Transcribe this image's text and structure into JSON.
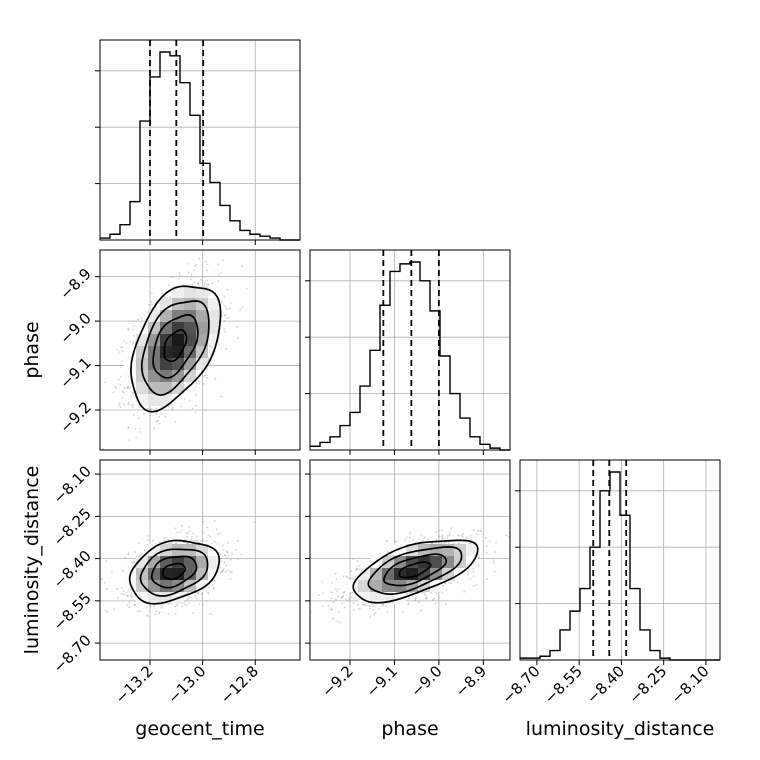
{
  "chart_data": {
    "type": "corner",
    "parameters": [
      "geocent_time",
      "phase",
      "luminosity_distance"
    ],
    "axis_labels": {
      "x": [
        "geocent_time",
        "phase",
        "luminosity_distance"
      ],
      "y": [
        "",
        "phase",
        "luminosity_distance"
      ]
    },
    "ticks": {
      "geocent_time": [
        "−13.2",
        "−13.0",
        "−12.8"
      ],
      "phase": [
        "−9.2",
        "−9.1",
        "−9.0",
        "−8.9"
      ],
      "luminosity_distance": [
        "−8.70",
        "−8.55",
        "−8.40",
        "−8.25",
        "−8.10"
      ]
    },
    "tick_values": {
      "geocent_time": [
        -13.2,
        -13.0,
        -12.8
      ],
      "phase": [
        -9.2,
        -9.1,
        -9.0,
        -8.9
      ],
      "luminosity_distance": [
        -8.7,
        -8.55,
        -8.4,
        -8.25,
        -8.1
      ]
    },
    "ranges": {
      "geocent_time": [
        -13.39,
        -12.63
      ],
      "phase": [
        -9.29,
        -8.84
      ],
      "luminosity_distance": [
        -8.76,
        -8.05
      ]
    },
    "quantiles": {
      "geocent_time": [
        -13.2,
        -13.1,
        -12.998
      ],
      "phase": [
        -9.125,
        -9.062,
        -9.0
      ],
      "luminosity_distance": [
        -8.5,
        -8.443,
        -8.383
      ]
    },
    "histograms": {
      "geocent_time": {
        "bin_edges": [
          -13.39,
          -13.352,
          -13.314,
          -13.276,
          -13.238,
          -13.2,
          -13.162,
          -13.124,
          -13.086,
          -13.048,
          -13.01,
          -12.972,
          -12.934,
          -12.896,
          -12.858,
          -12.82,
          -12.782,
          -12.744,
          -12.706,
          -12.668,
          -12.63
        ],
        "counts": [
          1,
          3,
          8,
          20,
          62,
          85,
          98,
          96,
          82,
          65,
          40,
          30,
          18,
          10,
          5,
          3,
          2,
          1,
          0,
          0
        ]
      },
      "phase": {
        "bin_edges": [
          -9.29,
          -9.2675,
          -9.245,
          -9.2225,
          -9.2,
          -9.1775,
          -9.155,
          -9.1325,
          -9.11,
          -9.0875,
          -9.065,
          -9.0425,
          -9.02,
          -8.9975,
          -8.975,
          -8.9525,
          -8.93,
          -8.9075,
          -8.885,
          -8.8625,
          -8.84
        ],
        "counts": [
          2,
          4,
          7,
          13,
          20,
          34,
          53,
          77,
          95,
          99,
          100,
          90,
          74,
          50,
          30,
          17,
          7,
          3,
          1,
          0
        ]
      },
      "luminosity_distance": {
        "bin_edges": [
          -8.76,
          -8.7245,
          -8.689,
          -8.6535,
          -8.618,
          -8.5825,
          -8.547,
          -8.5115,
          -8.476,
          -8.4405,
          -8.405,
          -8.3695,
          -8.334,
          -8.2985,
          -8.263,
          -8.2275,
          -8.192,
          -8.1565,
          -8.121,
          -8.0855,
          -8.05
        ],
        "counts": [
          1,
          1,
          2,
          5,
          16,
          26,
          38,
          60,
          90,
          100,
          77,
          38,
          16,
          5,
          1,
          0,
          0,
          0,
          0,
          0
        ]
      }
    },
    "pairs": [
      {
        "x": "geocent_time",
        "y": "phase",
        "center": [
          -13.105,
          -9.055
        ],
        "std": [
          0.085,
          0.07
        ],
        "corr": 0.45,
        "n_points": 1500
      },
      {
        "x": "geocent_time",
        "y": "luminosity_distance",
        "center": [
          -13.11,
          -8.445
        ],
        "std": [
          0.085,
          0.055
        ],
        "corr": 0.3,
        "n_points": 1500
      },
      {
        "x": "phase",
        "y": "luminosity_distance",
        "center": [
          -9.055,
          -8.44
        ],
        "std": [
          0.07,
          0.055
        ],
        "corr": 0.6,
        "n_points": 1500
      }
    ],
    "contour_levels_sigma": [
      0.5,
      1.0,
      1.5,
      2.0
    ],
    "grid": true,
    "colors": {
      "line": "#000000",
      "grid": "#b0b0b0",
      "points": "#999999"
    }
  }
}
